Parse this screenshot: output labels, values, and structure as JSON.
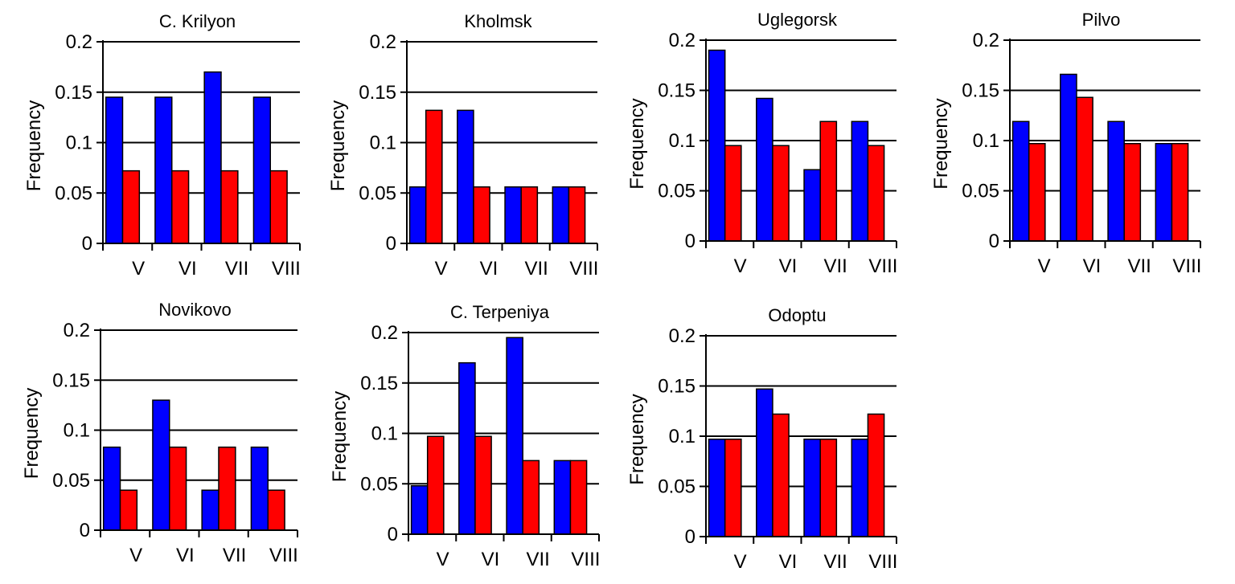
{
  "colors": {
    "series_a": "#0000ff",
    "series_b": "#ff0000",
    "axis": "#000000"
  },
  "chart_data": [
    {
      "type": "bar",
      "title": "C. Krilyon",
      "ylabel": "Frequency",
      "xlabel": "",
      "categories": [
        "V",
        "VI",
        "VII",
        "VIII"
      ],
      "ylim": [
        0,
        0.2
      ],
      "yticks": [
        "0",
        "0.05",
        "0.1",
        "0.15",
        "0.2"
      ],
      "grid": true,
      "series": [
        {
          "name": "blue",
          "values": [
            0.145,
            0.145,
            0.17,
            0.145
          ]
        },
        {
          "name": "red",
          "values": [
            0.072,
            0.072,
            0.072,
            0.072
          ]
        }
      ]
    },
    {
      "type": "bar",
      "title": "Kholmsk",
      "ylabel": "Frequency",
      "xlabel": "",
      "categories": [
        "V",
        "VI",
        "VII",
        "VIII"
      ],
      "ylim": [
        0,
        0.2
      ],
      "yticks": [
        "0",
        "0.05",
        "0.1",
        "0.15",
        "0.2"
      ],
      "grid": true,
      "series": [
        {
          "name": "blue",
          "values": [
            0.056,
            0.132,
            0.056,
            0.056
          ]
        },
        {
          "name": "red",
          "values": [
            0.132,
            0.056,
            0.056,
            0.056
          ]
        }
      ]
    },
    {
      "type": "bar",
      "title": "Uglegorsk",
      "ylabel": "Frequency",
      "xlabel": "",
      "categories": [
        "V",
        "VI",
        "VII",
        "VIII"
      ],
      "ylim": [
        0,
        0.2
      ],
      "yticks": [
        "0",
        "0.05",
        "0.1",
        "0.15",
        "0.2"
      ],
      "grid": true,
      "series": [
        {
          "name": "blue",
          "values": [
            0.19,
            0.142,
            0.071,
            0.119
          ]
        },
        {
          "name": "red",
          "values": [
            0.095,
            0.095,
            0.119,
            0.095
          ]
        }
      ]
    },
    {
      "type": "bar",
      "title": "Pilvo",
      "ylabel": "Frequency",
      "xlabel": "",
      "categories": [
        "V",
        "VI",
        "VII",
        "VIII"
      ],
      "ylim": [
        0,
        0.2
      ],
      "yticks": [
        "0",
        "0.05",
        "0.1",
        "0.15",
        "0.2"
      ],
      "grid": true,
      "series": [
        {
          "name": "blue",
          "values": [
            0.119,
            0.166,
            0.119,
            0.097
          ]
        },
        {
          "name": "red",
          "values": [
            0.097,
            0.143,
            0.097,
            0.097
          ]
        }
      ]
    },
    {
      "type": "bar",
      "title": "Novikovo",
      "ylabel": "Frequency",
      "xlabel": "",
      "categories": [
        "V",
        "VI",
        "VII",
        "VIII"
      ],
      "ylim": [
        0,
        0.2
      ],
      "yticks": [
        "0",
        "0.05",
        "0.1",
        "0.15",
        "0.2"
      ],
      "grid": true,
      "series": [
        {
          "name": "blue",
          "values": [
            0.083,
            0.13,
            0.04,
            0.083
          ]
        },
        {
          "name": "red",
          "values": [
            0.04,
            0.083,
            0.083,
            0.04
          ]
        }
      ]
    },
    {
      "type": "bar",
      "title": "C. Terpeniya",
      "ylabel": "Frequency",
      "xlabel": "",
      "categories": [
        "V",
        "VI",
        "VII",
        "VIII"
      ],
      "ylim": [
        0,
        0.2
      ],
      "yticks": [
        "0",
        "0.05",
        "0.1",
        "0.15",
        "0.2"
      ],
      "grid": true,
      "series": [
        {
          "name": "blue",
          "values": [
            0.048,
            0.17,
            0.195,
            0.073
          ]
        },
        {
          "name": "red",
          "values": [
            0.097,
            0.097,
            0.073,
            0.073
          ]
        }
      ]
    },
    {
      "type": "bar",
      "title": "Odoptu",
      "ylabel": "Frequency",
      "xlabel": "",
      "categories": [
        "V",
        "VI",
        "VII",
        "VIII"
      ],
      "ylim": [
        0,
        0.2
      ],
      "yticks": [
        "0",
        "0.05",
        "0.1",
        "0.15",
        "0.2"
      ],
      "grid": true,
      "series": [
        {
          "name": "blue",
          "values": [
            0.097,
            0.147,
            0.097,
            0.097
          ]
        },
        {
          "name": "red",
          "values": [
            0.097,
            0.122,
            0.097,
            0.122
          ]
        }
      ]
    }
  ]
}
